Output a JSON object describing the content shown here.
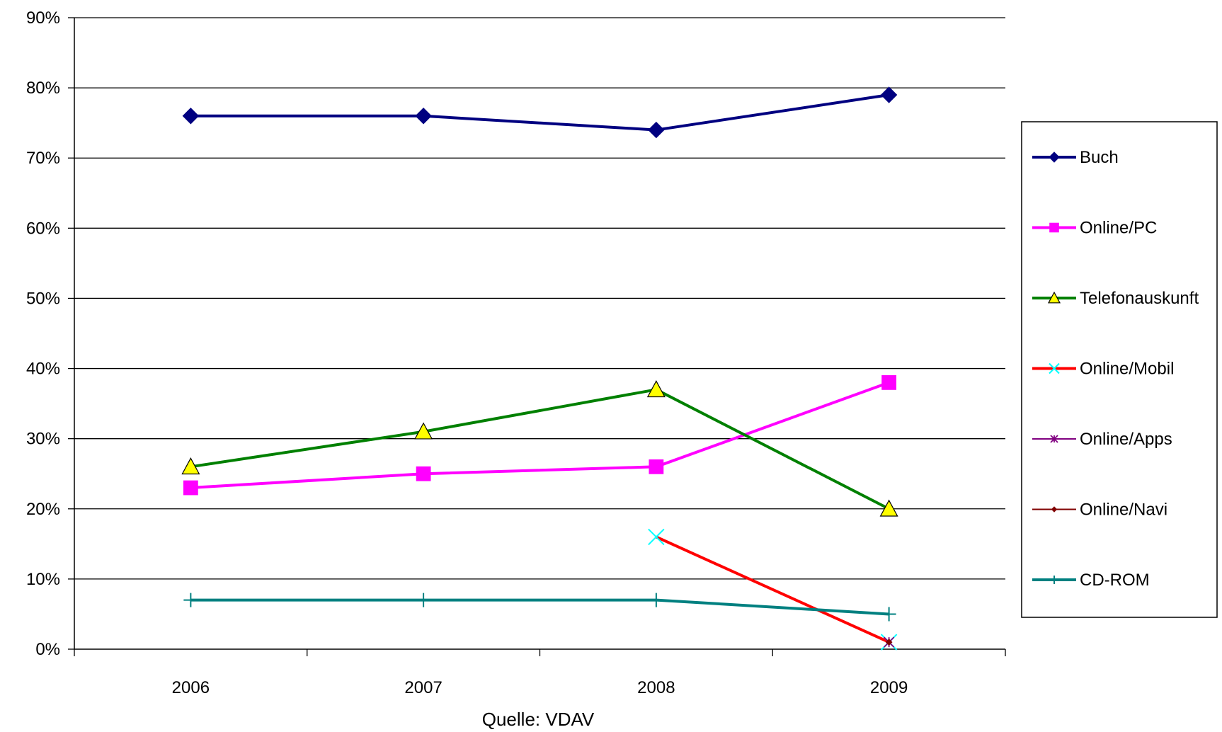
{
  "chart_data": {
    "type": "line",
    "title": "",
    "xlabel": "",
    "ylabel": "",
    "caption": "Quelle: VDAV",
    "categories": [
      "2006",
      "2007",
      "2008",
      "2009"
    ],
    "ylim": [
      0,
      90
    ],
    "yticks": [
      0,
      10,
      20,
      30,
      40,
      50,
      60,
      70,
      80,
      90
    ],
    "ytick_suffix": "%",
    "grid": "horizontal",
    "legend_position": "right",
    "series": [
      {
        "name": "Buch",
        "color": "#000080",
        "marker": "diamond",
        "values": [
          76,
          76,
          74,
          79
        ]
      },
      {
        "name": "Online/PC",
        "color": "#ff00ff",
        "marker": "square",
        "values": [
          23,
          25,
          26,
          38
        ]
      },
      {
        "name": "Telefonauskunft",
        "color": "#008000",
        "marker": "triangle",
        "marker_fill": "#ffff00",
        "values": [
          26,
          31,
          37,
          20
        ]
      },
      {
        "name": "Online/Mobil",
        "color": "#ff0000",
        "marker": "x",
        "marker_color": "#00ffff",
        "values": [
          null,
          null,
          16,
          1
        ]
      },
      {
        "name": "Online/Apps",
        "color": "#800080",
        "marker": "star",
        "values": [
          null,
          null,
          null,
          1
        ]
      },
      {
        "name": "Online/Navi",
        "color": "#800000",
        "marker": "dot",
        "values": [
          null,
          null,
          null,
          1
        ]
      },
      {
        "name": "CD-ROM",
        "color": "#008080",
        "marker": "plus",
        "values": [
          7,
          7,
          7,
          5
        ]
      }
    ]
  }
}
